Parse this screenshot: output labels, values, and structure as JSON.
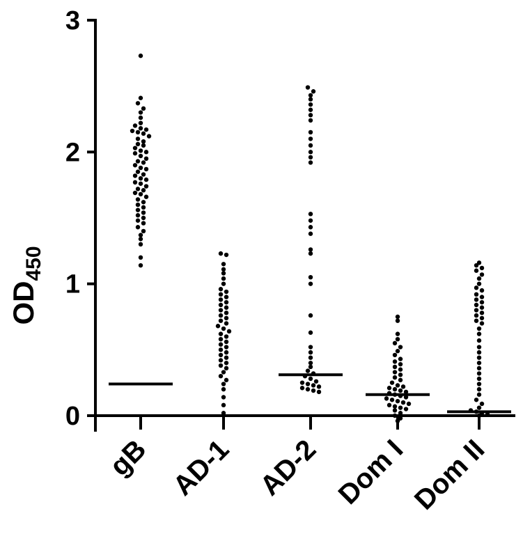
{
  "chart_data": {
    "type": "scatter",
    "subtype": "dot-plot",
    "title": "",
    "xlabel": "",
    "ylabel": "OD",
    "ylabel_subscript": "450",
    "ylim": [
      0,
      3
    ],
    "yticks": [
      0,
      1,
      2,
      3
    ],
    "categories": [
      "gB",
      "AD-1",
      "AD-2",
      "Dom I",
      "Dom II"
    ],
    "grid": false,
    "legend": "none",
    "point_color": "#000000",
    "groups": [
      {
        "category": "gB",
        "line": 0.24,
        "values": [
          2.73,
          2.41,
          2.37,
          2.33,
          2.3,
          2.26,
          2.22,
          2.2,
          2.18,
          2.17,
          2.16,
          2.15,
          2.14,
          2.12,
          2.1,
          2.08,
          2.06,
          2.05,
          2.03,
          2.01,
          2.0,
          1.99,
          1.97,
          1.95,
          1.93,
          1.92,
          1.9,
          1.88,
          1.87,
          1.85,
          1.83,
          1.82,
          1.8,
          1.79,
          1.77,
          1.76,
          1.74,
          1.72,
          1.71,
          1.69,
          1.68,
          1.66,
          1.64,
          1.62,
          1.6,
          1.58,
          1.56,
          1.54,
          1.52,
          1.5,
          1.48,
          1.46,
          1.43,
          1.4,
          1.37,
          1.34,
          1.3,
          1.2,
          1.14
        ]
      },
      {
        "category": "AD-1",
        "line": null,
        "values": [
          1.23,
          1.22,
          1.15,
          1.11,
          1.08,
          1.04,
          1.0,
          0.96,
          0.94,
          0.92,
          0.9,
          0.88,
          0.86,
          0.84,
          0.82,
          0.8,
          0.78,
          0.76,
          0.74,
          0.72,
          0.7,
          0.68,
          0.66,
          0.64,
          0.62,
          0.6,
          0.58,
          0.56,
          0.54,
          0.52,
          0.5,
          0.48,
          0.46,
          0.44,
          0.42,
          0.4,
          0.38,
          0.36,
          0.33,
          0.3,
          0.27,
          0.24,
          0.2,
          0.14,
          0.08,
          0.02
        ]
      },
      {
        "category": "AD-2",
        "line": 0.31,
        "values": [
          2.49,
          2.46,
          2.43,
          2.4,
          2.36,
          2.32,
          2.28,
          2.24,
          2.15,
          2.1,
          2.05,
          2.0,
          1.96,
          1.92,
          1.53,
          1.48,
          1.43,
          1.38,
          1.26,
          1.23,
          1.05,
          1.0,
          0.76,
          0.63,
          0.52,
          0.48,
          0.44,
          0.4,
          0.37,
          0.34,
          0.32,
          0.3,
          0.28,
          0.26,
          0.25,
          0.24,
          0.23,
          0.22,
          0.21,
          0.2,
          0.19,
          0.18
        ]
      },
      {
        "category": "Dom I",
        "line": 0.16,
        "values": [
          0.75,
          0.72,
          0.62,
          0.58,
          0.55,
          0.52,
          0.49,
          0.46,
          0.43,
          0.41,
          0.39,
          0.37,
          0.35,
          0.33,
          0.31,
          0.29,
          0.27,
          0.25,
          0.23,
          0.22,
          0.21,
          0.2,
          0.19,
          0.18,
          0.17,
          0.16,
          0.15,
          0.14,
          0.13,
          0.12,
          0.11,
          0.1,
          0.09,
          0.08,
          0.07,
          0.06,
          0.05,
          0.04,
          0.02,
          0.0,
          -0.02,
          -0.04
        ]
      },
      {
        "category": "Dom II",
        "line": 0.03,
        "values": [
          1.16,
          1.14,
          1.12,
          1.1,
          1.07,
          1.04,
          1.0,
          0.97,
          0.95,
          0.92,
          0.9,
          0.88,
          0.86,
          0.84,
          0.82,
          0.8,
          0.78,
          0.76,
          0.74,
          0.72,
          0.7,
          0.66,
          0.62,
          0.57,
          0.52,
          0.48,
          0.44,
          0.4,
          0.36,
          0.32,
          0.28,
          0.24,
          0.2,
          0.16,
          0.12,
          0.09,
          0.06,
          0.04,
          0.03,
          0.02,
          0.01,
          0.0
        ]
      }
    ]
  }
}
